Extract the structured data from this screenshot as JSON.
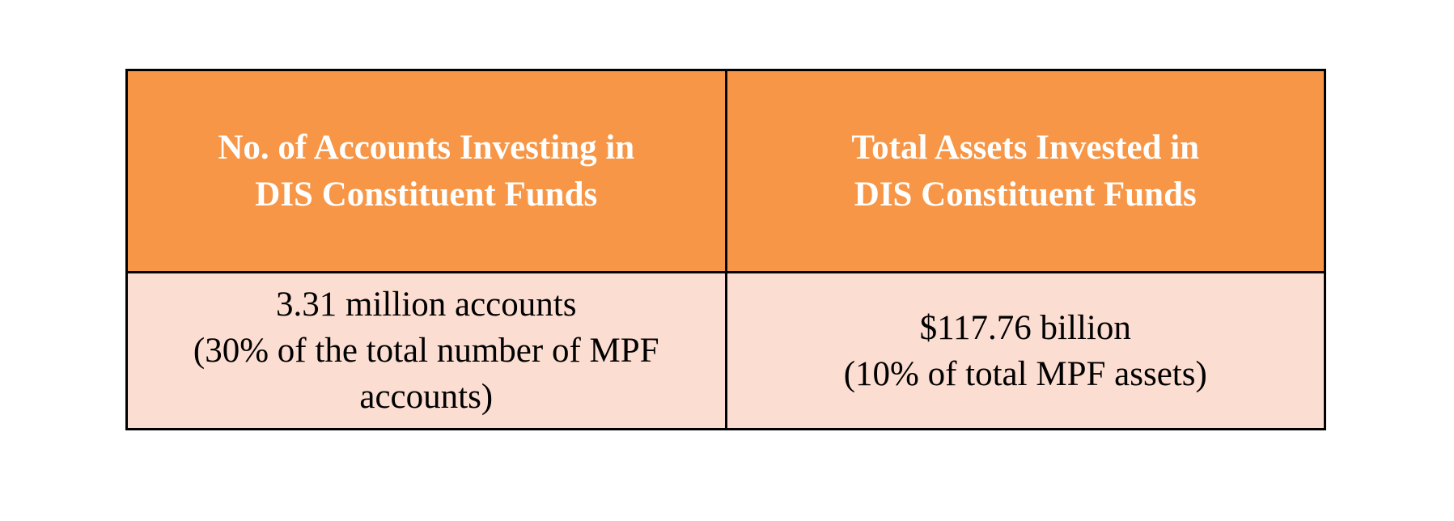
{
  "table": {
    "headers": [
      {
        "lines": [
          "No. of Accounts Investing in",
          "DIS Constituent Funds"
        ]
      },
      {
        "lines": [
          "Total Assets Invested in",
          "DIS Constituent Funds"
        ]
      }
    ],
    "cells": [
      {
        "lines": [
          "3.31 million accounts",
          "(30% of the total number of MPF",
          "accounts)"
        ]
      },
      {
        "lines": [
          "$117.76 billion",
          "(10% of total MPF assets)"
        ]
      }
    ],
    "colors": {
      "header_bg": "#F79646",
      "header_text": "#FFFFFF",
      "cell_bg": "#FBDDD1",
      "cell_text": "#000000",
      "border": "#000000"
    }
  }
}
